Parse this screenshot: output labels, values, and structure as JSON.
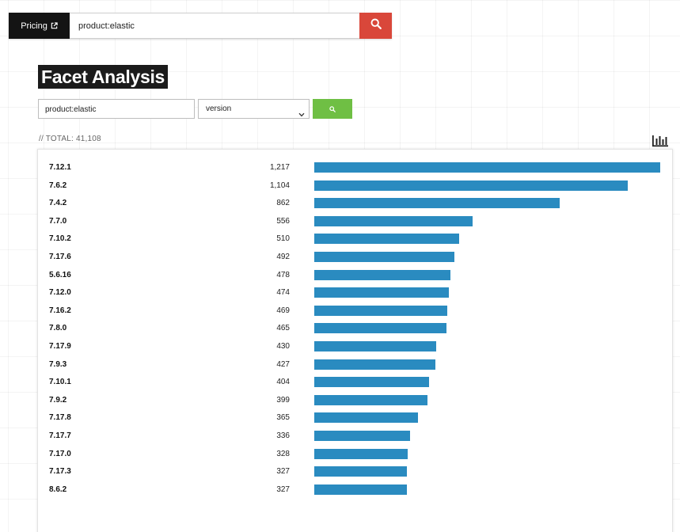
{
  "header": {
    "pricing_label": "Pricing",
    "search_value": "product:elastic"
  },
  "title": "Facet Analysis",
  "facet_form": {
    "query_value": "product:elastic",
    "facet_selected": "version"
  },
  "total_label": "// TOTAL: 41,108",
  "colors": {
    "bar": "#2a8bc0",
    "search_button": "#d9473a",
    "facet_button": "#6fbf44"
  },
  "chart_data": {
    "type": "bar",
    "orientation": "horizontal",
    "categories": [
      "7.12.1",
      "7.6.2",
      "7.4.2",
      "7.7.0",
      "7.10.2",
      "7.17.6",
      "5.6.16",
      "7.12.0",
      "7.16.2",
      "7.8.0",
      "7.17.9",
      "7.9.3",
      "7.10.1",
      "7.9.2",
      "7.17.8",
      "7.17.7",
      "7.17.0",
      "7.17.3",
      "8.6.2"
    ],
    "values": [
      1217,
      1104,
      862,
      556,
      510,
      492,
      478,
      474,
      469,
      465,
      430,
      427,
      404,
      399,
      365,
      336,
      328,
      327,
      327
    ],
    "value_labels": [
      "1,217",
      "1,104",
      "862",
      "556",
      "510",
      "492",
      "478",
      "474",
      "469",
      "465",
      "430",
      "427",
      "404",
      "399",
      "365",
      "336",
      "328",
      "327",
      "327"
    ],
    "max": 1217
  }
}
